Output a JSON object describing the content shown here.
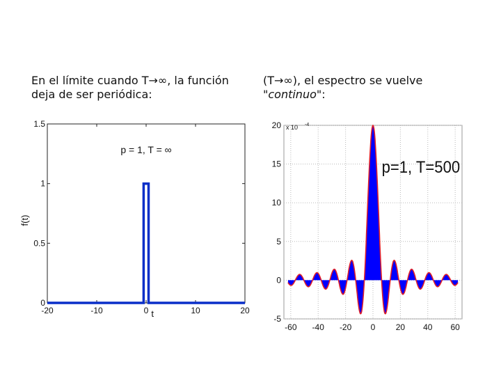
{
  "captions": {
    "left_line1": "En el límite cuando T→∞, la función",
    "left_line2": "deja de ser periódica:",
    "right_line1": "(T→∞), el espectro se vuelve",
    "right_line2_prefix": "\"",
    "right_line2_italic": "continuo",
    "right_line2_suffix": "\":"
  },
  "chart_data": [
    {
      "type": "line",
      "annotation": "p = 1, T = ∞",
      "xlabel": "t",
      "ylabel": "f(t)",
      "xlim": [
        -20,
        20
      ],
      "ylim": [
        0,
        1.5
      ],
      "xticks": [
        "-20",
        "-10",
        "0",
        "10",
        "20"
      ],
      "xtick_values": [
        -20,
        -10,
        0,
        10,
        20
      ],
      "yticks": [
        "0",
        "0.5",
        "1",
        "1.5"
      ],
      "ytick_values": [
        0,
        0.5,
        1,
        1.5
      ],
      "grid": false,
      "line_color": "#0a2fc8",
      "series": [
        {
          "x": [
            -20,
            -0.5,
            -0.5,
            0.5,
            0.5,
            20
          ],
          "y": [
            0,
            0,
            1,
            1,
            0,
            0
          ]
        }
      ]
    },
    {
      "type": "area",
      "annotation": "p=1, T=500",
      "exponent_label": "x 10",
      "exponent_power": "-4",
      "xlim": [
        -65,
        65
      ],
      "ylim": [
        -5,
        20
      ],
      "xticks": [
        "-60",
        "-40",
        "-20",
        "0",
        "20",
        "40",
        "60"
      ],
      "xtick_values": [
        -60,
        -40,
        -20,
        0,
        20,
        40,
        60
      ],
      "yticks": [
        "20",
        "15",
        "10",
        "5",
        "0",
        "-5"
      ],
      "ytick_values": [
        20,
        15,
        10,
        5,
        0,
        -5
      ],
      "grid": true,
      "fill_color": "#0000ff",
      "outline_color": "#e0202a",
      "series": [
        {
          "name": "",
          "function": "sinc",
          "peak": 20,
          "x_range": [
            -62,
            62
          ],
          "zero_spacing": 6.3
        }
      ]
    }
  ]
}
